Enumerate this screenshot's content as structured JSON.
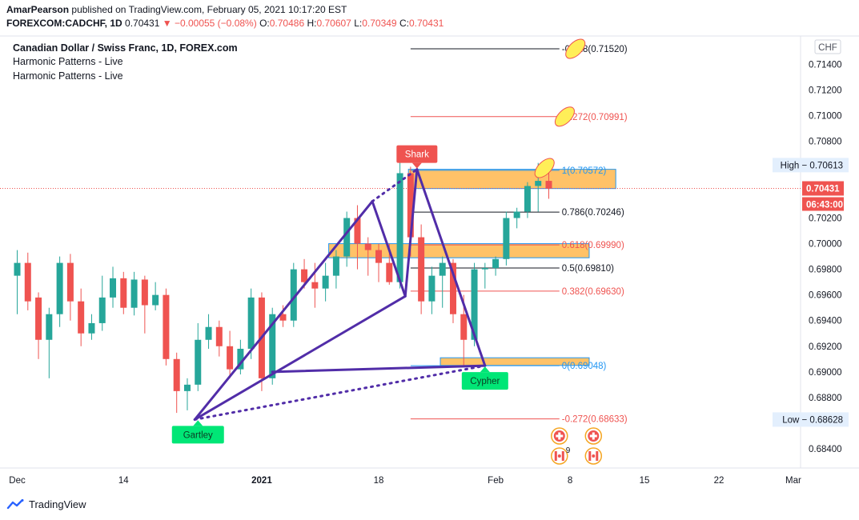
{
  "header": {
    "author": "AmarPearson",
    "published_text": "published on TradingView.com, February 05, 2021 10:17:20 EST",
    "symbol": "FOREXCOM:CADCHF, 1D",
    "price": "0.70431",
    "change": "▼ −0.00055 (−0.08%)",
    "o_label": "O:",
    "o_value": "0.70486",
    "h_label": "H:",
    "h_value": "0.70607",
    "l_label": "L:",
    "l_value": "0.70349",
    "c_label": "C:",
    "c_value": "0.70431"
  },
  "legend": {
    "title": "Canadian Dollar / Swiss Franc, 1D, FOREX.com",
    "indicator_1": "Harmonic Patterns - Live",
    "indicator_2": "Harmonic Patterns - Live"
  },
  "footer": {
    "brand": "TradingView"
  },
  "colors": {
    "up": "#26a69a",
    "down": "#ef5350",
    "pattern": "#512da8",
    "zone": "#ffb74d",
    "label_green": "#00e676",
    "label_red": "#ef5350"
  },
  "chart_data": {
    "type": "candlestick",
    "currency_label": "CHF",
    "ylim": [
      0.6825,
      0.7162
    ],
    "y_ticks": [
      0.714,
      0.712,
      0.71,
      0.708,
      0.706,
      0.704,
      0.702,
      0.7,
      0.698,
      0.696,
      0.694,
      0.692,
      0.69,
      0.688,
      0.686,
      0.684
    ],
    "y_tick_labels": [
      "0.71400",
      "0.71200",
      "0.71000",
      "0.70800",
      "0.70600",
      "0.70400",
      "0.70200",
      "0.70000",
      "0.69800",
      "0.69600",
      "0.69400",
      "0.69200",
      "0.69000",
      "0.68800",
      "0.68600",
      "0.68400"
    ],
    "x_ticks": [
      {
        "label": "Dec",
        "bar": 0
      },
      {
        "label": "14",
        "bar": 10
      },
      {
        "label": "2021",
        "bar": 23
      },
      {
        "label": "18",
        "bar": 34
      },
      {
        "label": "Feb",
        "bar": 45
      },
      {
        "label": "8",
        "bar": 52
      },
      {
        "label": "15",
        "bar": 59
      },
      {
        "label": "22",
        "bar": 66
      },
      {
        "label": "Mar",
        "bar": 73
      }
    ],
    "candles": [
      {
        "o": 0.6975,
        "h": 0.6995,
        "l": 0.6945,
        "c": 0.6985
      },
      {
        "o": 0.6985,
        "h": 0.6993,
        "l": 0.6948,
        "c": 0.6955
      },
      {
        "o": 0.6958,
        "h": 0.6962,
        "l": 0.691,
        "c": 0.6925
      },
      {
        "o": 0.6925,
        "h": 0.695,
        "l": 0.6895,
        "c": 0.6945
      },
      {
        "o": 0.6945,
        "h": 0.699,
        "l": 0.6935,
        "c": 0.6985
      },
      {
        "o": 0.6985,
        "h": 0.6992,
        "l": 0.694,
        "c": 0.6955
      },
      {
        "o": 0.6955,
        "h": 0.6965,
        "l": 0.692,
        "c": 0.693
      },
      {
        "o": 0.693,
        "h": 0.6945,
        "l": 0.6925,
        "c": 0.6938
      },
      {
        "o": 0.6938,
        "h": 0.6975,
        "l": 0.6932,
        "c": 0.6958
      },
      {
        "o": 0.6958,
        "h": 0.6982,
        "l": 0.695,
        "c": 0.6973
      },
      {
        "o": 0.6973,
        "h": 0.6978,
        "l": 0.6945,
        "c": 0.695
      },
      {
        "o": 0.695,
        "h": 0.6978,
        "l": 0.6944,
        "c": 0.6972
      },
      {
        "o": 0.6972,
        "h": 0.6975,
        "l": 0.693,
        "c": 0.6952
      },
      {
        "o": 0.6952,
        "h": 0.697,
        "l": 0.6948,
        "c": 0.696
      },
      {
        "o": 0.696,
        "h": 0.6965,
        "l": 0.6905,
        "c": 0.691
      },
      {
        "o": 0.691,
        "h": 0.6915,
        "l": 0.6868,
        "c": 0.6885
      },
      {
        "o": 0.6885,
        "h": 0.6895,
        "l": 0.687,
        "c": 0.689
      },
      {
        "o": 0.689,
        "h": 0.6938,
        "l": 0.6885,
        "c": 0.6925
      },
      {
        "o": 0.6925,
        "h": 0.6945,
        "l": 0.6918,
        "c": 0.6935
      },
      {
        "o": 0.6935,
        "h": 0.694,
        "l": 0.6912,
        "c": 0.692
      },
      {
        "o": 0.692,
        "h": 0.6932,
        "l": 0.6895,
        "c": 0.6902
      },
      {
        "o": 0.6902,
        "h": 0.6925,
        "l": 0.6898,
        "c": 0.6918
      },
      {
        "o": 0.6918,
        "h": 0.6965,
        "l": 0.691,
        "c": 0.6958
      },
      {
        "o": 0.6958,
        "h": 0.6962,
        "l": 0.6885,
        "c": 0.6895
      },
      {
        "o": 0.6895,
        "h": 0.695,
        "l": 0.689,
        "c": 0.6945
      },
      {
        "o": 0.6945,
        "h": 0.6952,
        "l": 0.6935,
        "c": 0.694
      },
      {
        "o": 0.694,
        "h": 0.6985,
        "l": 0.6935,
        "c": 0.698
      },
      {
        "o": 0.698,
        "h": 0.6988,
        "l": 0.6965,
        "c": 0.697
      },
      {
        "o": 0.697,
        "h": 0.6985,
        "l": 0.695,
        "c": 0.6965
      },
      {
        "o": 0.6965,
        "h": 0.6985,
        "l": 0.6955,
        "c": 0.6975
      },
      {
        "o": 0.6975,
        "h": 0.6995,
        "l": 0.6965,
        "c": 0.699
      },
      {
        "o": 0.699,
        "h": 0.7025,
        "l": 0.6982,
        "c": 0.702
      },
      {
        "o": 0.702,
        "h": 0.703,
        "l": 0.698,
        "c": 0.7
      },
      {
        "o": 0.7,
        "h": 0.7005,
        "l": 0.6975,
        "c": 0.6995
      },
      {
        "o": 0.6995,
        "h": 0.7,
        "l": 0.697,
        "c": 0.6985
      },
      {
        "o": 0.6985,
        "h": 0.7,
        "l": 0.6968,
        "c": 0.697
      },
      {
        "o": 0.697,
        "h": 0.7065,
        "l": 0.6965,
        "c": 0.7055
      },
      {
        "o": 0.7055,
        "h": 0.706,
        "l": 0.699,
        "c": 0.7005
      },
      {
        "o": 0.7005,
        "h": 0.7015,
        "l": 0.6945,
        "c": 0.6955
      },
      {
        "o": 0.6955,
        "h": 0.6982,
        "l": 0.6945,
        "c": 0.6975
      },
      {
        "o": 0.6975,
        "h": 0.699,
        "l": 0.695,
        "c": 0.6985
      },
      {
        "o": 0.6985,
        "h": 0.6988,
        "l": 0.6938,
        "c": 0.6945
      },
      {
        "o": 0.6945,
        "h": 0.696,
        "l": 0.6905,
        "c": 0.6925
      },
      {
        "o": 0.6925,
        "h": 0.6985,
        "l": 0.692,
        "c": 0.698
      },
      {
        "o": 0.698,
        "h": 0.6985,
        "l": 0.6965,
        "c": 0.6981
      },
      {
        "o": 0.6981,
        "h": 0.699,
        "l": 0.6975,
        "c": 0.6988
      },
      {
        "o": 0.6988,
        "h": 0.7025,
        "l": 0.6983,
        "c": 0.702
      },
      {
        "o": 0.702,
        "h": 0.7028,
        "l": 0.7012,
        "c": 0.7025
      },
      {
        "o": 0.7025,
        "h": 0.7048,
        "l": 0.702,
        "c": 0.7045
      },
      {
        "o": 0.7045,
        "h": 0.7063,
        "l": 0.7025,
        "c": 0.7049
      },
      {
        "o": 0.7049,
        "h": 0.7061,
        "l": 0.7035,
        "c": 0.7043
      }
    ],
    "price_labels": [
      {
        "text": "High",
        "value": "0.70613",
        "price": 0.70613,
        "style": "high"
      },
      {
        "text": "",
        "value": "0.70431",
        "price": 0.70431,
        "style": "last"
      },
      {
        "text": "",
        "value": "06:43:00",
        "price": 0.70325,
        "style": "timer"
      },
      {
        "text": "Low",
        "value": "0.68628",
        "price": 0.68628,
        "style": "low"
      }
    ],
    "fib_levels": [
      {
        "label": "-0.618(0.71520)",
        "price": 0.7152,
        "color": "#131722",
        "x1_bar": 37,
        "x2_bar": 51
      },
      {
        "label": "-0.272(0.70991)",
        "price": 0.70991,
        "color": "#ef5350",
        "x1_bar": 37,
        "x2_bar": 51
      },
      {
        "label": "1(0.70572)",
        "price": 0.70572,
        "color": "#2196f3",
        "x1_bar": 37,
        "x2_bar": 51
      },
      {
        "label": "0.786(0.70246)",
        "price": 0.70246,
        "color": "#131722",
        "x1_bar": 37,
        "x2_bar": 51
      },
      {
        "label": "0.618(0.69990)",
        "price": 0.6999,
        "color": "#ef5350",
        "x1_bar": 37,
        "x2_bar": 51
      },
      {
        "label": "0.5(0.69810)",
        "price": 0.6981,
        "color": "#131722",
        "x1_bar": 37,
        "x2_bar": 51
      },
      {
        "label": "0.382(0.69630)",
        "price": 0.6963,
        "color": "#ef5350",
        "x1_bar": 37,
        "x2_bar": 51
      },
      {
        "label": "0(0.69048)",
        "price": 0.69048,
        "color": "#2196f3",
        "x1_bar": 37,
        "x2_bar": 51
      },
      {
        "label": "-0.272(0.68633)",
        "price": 0.68633,
        "color": "#ef5350",
        "x1_bar": 37,
        "x2_bar": 51
      }
    ],
    "zones": [
      {
        "x1_bar": 36.8,
        "x2_bar": 56.3,
        "top": 0.7058,
        "bottom": 0.7043
      },
      {
        "x1_bar": 29.3,
        "x2_bar": 53.8,
        "top": 0.7,
        "bottom": 0.6989
      },
      {
        "x1_bar": 39.8,
        "x2_bar": 53.8,
        "top": 0.6911,
        "bottom": 0.6905
      }
    ],
    "pattern_points": {
      "gartley": [
        {
          "bar": 16.7,
          "price": 0.68628
        },
        {
          "bar": 33.4,
          "price": 0.7033
        },
        {
          "bar": 36.5,
          "price": 0.6959
        },
        {
          "bar": 17.0,
          "price": 0.68628
        },
        {
          "bar": 24.0,
          "price": 0.69
        }
      ],
      "gartley_x_to_a": [
        {
          "bar": 16.7,
          "price": 0.68628
        },
        {
          "bar": 33.4,
          "price": 0.7033
        }
      ],
      "gartley_lines": [
        [
          {
            "bar": 16.7,
            "price": 0.68628
          },
          {
            "bar": 33.4,
            "price": 0.7033
          }
        ],
        [
          {
            "bar": 33.4,
            "price": 0.7033
          },
          {
            "bar": 36.5,
            "price": 0.6959
          }
        ],
        [
          {
            "bar": 36.5,
            "price": 0.6959
          },
          {
            "bar": 16.7,
            "price": 0.68628
          }
        ]
      ],
      "cypher_lines": [
        [
          {
            "bar": 36.5,
            "price": 0.6959
          },
          {
            "bar": 37.6,
            "price": 0.7058
          }
        ],
        [
          {
            "bar": 37.6,
            "price": 0.7058
          },
          {
            "bar": 44.0,
            "price": 0.69048
          }
        ],
        [
          {
            "bar": 44.0,
            "price": 0.69048
          },
          {
            "bar": 24.0,
            "price": 0.69
          }
        ]
      ],
      "dotted_lines": [
        [
          {
            "bar": 16.7,
            "price": 0.68628
          },
          {
            "bar": 44.0,
            "price": 0.69048
          }
        ],
        [
          {
            "bar": 33.4,
            "price": 0.7033
          },
          {
            "bar": 37.6,
            "price": 0.7058
          }
        ]
      ]
    },
    "pattern_labels": [
      {
        "text": "Gartley",
        "bar": 17.0,
        "price": 0.68628,
        "color": "#00e676",
        "dir": "below"
      },
      {
        "text": "Shark",
        "bar": 37.6,
        "price": 0.7058,
        "color": "#ef5350",
        "dir": "above"
      },
      {
        "text": "Cypher",
        "bar": 44.0,
        "price": 0.69048,
        "color": "#00e676",
        "dir": "below"
      }
    ],
    "ellipses": [
      {
        "bar": 52.5,
        "price": 0.7152
      },
      {
        "bar": 51.5,
        "price": 0.70991
      },
      {
        "bar": 49.6,
        "price": 0.7059
      }
    ],
    "events": [
      {
        "bar": 51.0,
        "row": 1,
        "kind": "red-cross"
      },
      {
        "bar": 54.2,
        "row": 1,
        "kind": "red-cross"
      },
      {
        "bar": 51.0,
        "row": 2,
        "kind": "flag",
        "count": "9"
      },
      {
        "bar": 54.2,
        "row": 2,
        "kind": "flag",
        "count": ""
      }
    ]
  }
}
